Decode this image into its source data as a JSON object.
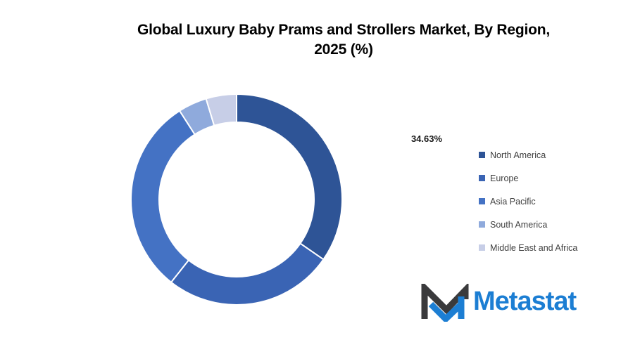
{
  "title": {
    "line1": "Global Luxury Baby Prams and Strollers Market, By Region,",
    "line2": "2025 (%)"
  },
  "chart_data": {
    "type": "pie",
    "subtype": "donut",
    "title": "Global Luxury Baby Prams and Strollers Market, By Region, 2025 (%)",
    "unit": "%",
    "start_angle_deg": 0,
    "direction": "clockwise",
    "inner_radius_ratio": 0.73,
    "legend_position": "right",
    "series": [
      {
        "name": "North America",
        "value": 34.63,
        "color": "#2E5496",
        "label": "34.63%"
      },
      {
        "name": "Europe",
        "value": 26.0,
        "color": "#3A64B4"
      },
      {
        "name": "Asia Pacific",
        "value": 30.3,
        "color": "#4472C4"
      },
      {
        "name": "South America",
        "value": 4.4,
        "color": "#8FAADC"
      },
      {
        "name": "Middle East and Africa",
        "value": 4.67,
        "color": "#C7CEE7"
      }
    ]
  },
  "data_label": {
    "text": "34.63%"
  },
  "legend": {
    "items": [
      {
        "label": "North America",
        "color": "#2E5496"
      },
      {
        "label": "Europe",
        "color": "#3A64B4"
      },
      {
        "label": "Asia Pacific",
        "color": "#4472C4"
      },
      {
        "label": "South America",
        "color": "#8FAADC"
      },
      {
        "label": "Middle East and Africa",
        "color": "#C7CEE7"
      }
    ]
  },
  "logo": {
    "text": "Metastat",
    "text_color": "#1C7ED3",
    "mark_dark_color": "#3A3A3C",
    "mark_blue_color": "#1C7ED3"
  }
}
